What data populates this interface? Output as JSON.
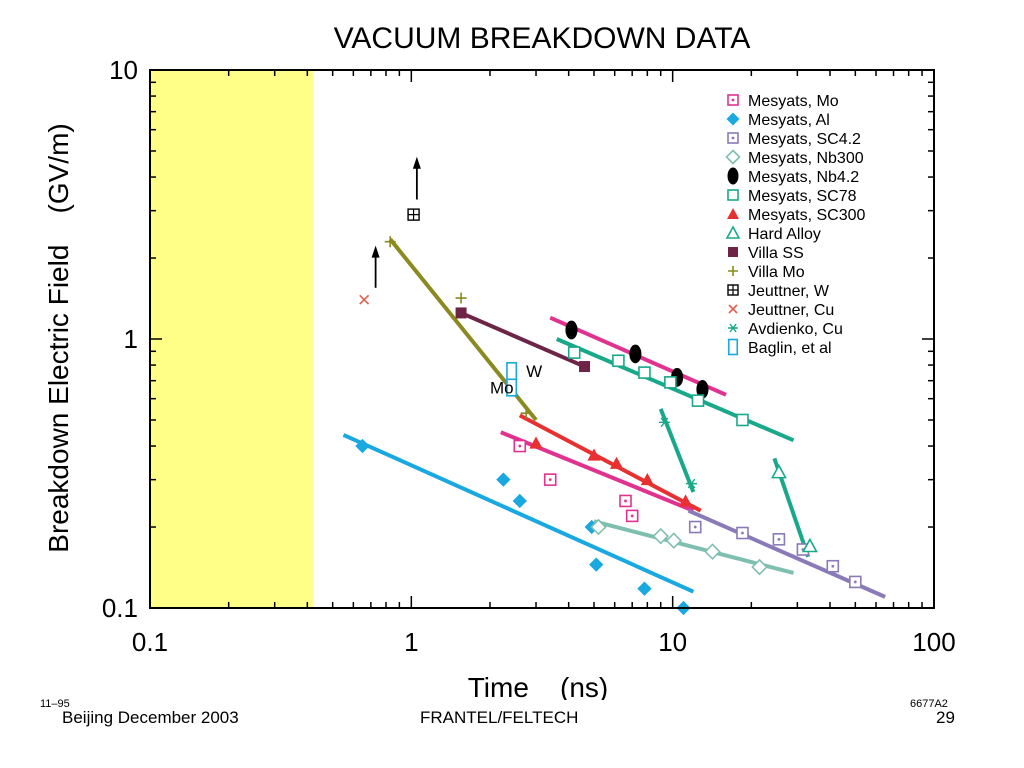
{
  "chart_data": {
    "type": "scatter",
    "title": "VACUUM BREAKDOWN DATA",
    "xlabel": "Time    (ns)",
    "ylabel": "Breakdown Electric Field    (GV/m)",
    "x_scale": "log",
    "y_scale": "log",
    "xlim": [
      0.1,
      100
    ],
    "ylim": [
      0.1,
      10
    ],
    "x_ticks": [
      {
        "value": 0.1,
        "label": "0.1"
      },
      {
        "value": 1,
        "label": "1"
      },
      {
        "value": 10,
        "label": "10"
      },
      {
        "value": 100,
        "label": "100"
      }
    ],
    "y_ticks": [
      {
        "value": 0.1,
        "label": "0.1"
      },
      {
        "value": 1,
        "label": "1"
      },
      {
        "value": 10,
        "label": "10"
      }
    ],
    "grid": false,
    "legend_position": "top-right",
    "shaded_region": {
      "x": [
        0.1,
        0.42
      ],
      "color": "#ffff88"
    },
    "series": [
      {
        "name": "Mesyats, Mo",
        "color": "#e0338f",
        "marker": "square-dot",
        "points": [
          [
            2.6,
            0.4
          ],
          [
            3.4,
            0.3
          ],
          [
            6.6,
            0.25
          ],
          [
            7.0,
            0.22
          ]
        ],
        "fit": [
          [
            2.2,
            0.45
          ],
          [
            12,
            0.23
          ]
        ]
      },
      {
        "name": "Mesyats, Al",
        "color": "#1aa8e0",
        "marker": "diamond",
        "points": [
          [
            0.65,
            0.4
          ],
          [
            2.25,
            0.3
          ],
          [
            2.6,
            0.25
          ],
          [
            4.9,
            0.2
          ],
          [
            5.1,
            0.145
          ],
          [
            7.8,
            0.118
          ],
          [
            11,
            0.1
          ]
        ],
        "fit": [
          [
            0.55,
            0.44
          ],
          [
            12,
            0.115
          ]
        ]
      },
      {
        "name": "Mesyats, SC4.2",
        "color": "#8a7bb8",
        "marker": "square-dot",
        "points": [
          [
            12.2,
            0.2
          ],
          [
            18.5,
            0.19
          ],
          [
            25.5,
            0.18
          ],
          [
            31.5,
            0.165
          ],
          [
            41,
            0.143
          ],
          [
            50,
            0.125
          ]
        ],
        "fit": [
          [
            11.5,
            0.23
          ],
          [
            65,
            0.11
          ]
        ]
      },
      {
        "name": "Mesyats, Nb300",
        "color": "#7fbfb0",
        "marker": "diamond-open",
        "points": [
          [
            5.2,
            0.2
          ],
          [
            9.0,
            0.185
          ],
          [
            10.1,
            0.178
          ],
          [
            14.2,
            0.162
          ],
          [
            21.5,
            0.142
          ]
        ],
        "fit": [
          [
            5.0,
            0.21
          ],
          [
            29,
            0.135
          ]
        ]
      },
      {
        "name": "Mesyats, Nb4.2",
        "color": "#000000",
        "marker": "ellipse",
        "points": [
          [
            4.1,
            1.08
          ],
          [
            7.2,
            0.88
          ],
          [
            10.4,
            0.72
          ],
          [
            13,
            0.65
          ]
        ],
        "fit": [
          [
            3.4,
            1.2
          ],
          [
            16,
            0.62
          ]
        ]
      },
      {
        "name": "Mesyats, SC78",
        "color": "#1aa88a",
        "marker": "square-open",
        "points": [
          [
            4.2,
            0.89
          ],
          [
            6.2,
            0.83
          ],
          [
            7.8,
            0.75
          ],
          [
            9.8,
            0.69
          ],
          [
            12.5,
            0.59
          ],
          [
            18.5,
            0.5
          ]
        ],
        "fit": [
          [
            3.6,
            1.0
          ],
          [
            29,
            0.42
          ]
        ]
      },
      {
        "name": "Mesyats, SC300",
        "color": "#e83030",
        "marker": "triangle",
        "points": [
          [
            3.0,
            0.41
          ],
          [
            5.0,
            0.37
          ],
          [
            6.1,
            0.345
          ],
          [
            8.0,
            0.3
          ],
          [
            11.2,
            0.25
          ]
        ],
        "fit": [
          [
            2.6,
            0.52
          ],
          [
            12.8,
            0.23
          ]
        ]
      },
      {
        "name": "Hard Alloy",
        "color": "#1aa88a",
        "marker": "triangle-open",
        "points": [
          [
            25.5,
            0.32
          ],
          [
            33.5,
            0.17
          ]
        ],
        "fit": [
          [
            24.5,
            0.36
          ],
          [
            33,
            0.155
          ]
        ]
      },
      {
        "name": "Villa SS",
        "color": "#6e2446",
        "marker": "square",
        "points": [
          [
            1.55,
            1.25
          ],
          [
            4.6,
            0.79
          ]
        ],
        "fit": [
          [
            1.55,
            1.25
          ],
          [
            4.6,
            0.79
          ]
        ]
      },
      {
        "name": "Villa Mo",
        "color": "#8a8a20",
        "marker": "plus",
        "points": [
          [
            0.83,
            2.3
          ],
          [
            1.55,
            1.42
          ],
          [
            2.75,
            0.53
          ]
        ],
        "fit": [
          [
            0.83,
            2.35
          ],
          [
            3.0,
            0.5
          ]
        ]
      },
      {
        "name": "Jeuttner, W",
        "color": "#000000",
        "marker": "boxed-plus",
        "points": [
          [
            1.02,
            2.9
          ]
        ],
        "fit": []
      },
      {
        "name": "Jeuttner, Cu",
        "color": "#e06050",
        "marker": "x",
        "points": [
          [
            0.66,
            1.4
          ]
        ],
        "fit": []
      },
      {
        "name": "Avdienko, Cu",
        "color": "#1aa88a",
        "marker": "asterisk",
        "points": [
          [
            9.3,
            0.49
          ],
          [
            11.8,
            0.29
          ]
        ],
        "fit": [
          [
            9.0,
            0.55
          ],
          [
            12,
            0.27
          ]
        ]
      },
      {
        "name": "Baglin, et al",
        "color": "#1aa8e0",
        "marker": "rect-open",
        "points": [
          [
            2.42,
            0.76
          ],
          [
            2.42,
            0.66
          ]
        ],
        "fit": []
      }
    ],
    "arrows_up": [
      {
        "x": 0.73,
        "y_from": 1.55,
        "y_to": 2.15
      },
      {
        "x": 1.05,
        "y_from": 3.3,
        "y_to": 4.6
      }
    ],
    "annotations": [
      {
        "text": "W",
        "x": 2.75,
        "y": 0.76
      },
      {
        "text": "Mo",
        "x": 2.0,
        "y": 0.66
      }
    ]
  },
  "footer": {
    "left_tiny": "11–95",
    "right_tiny": "6677A2",
    "left": "Beijing December 2003",
    "center": "FRANTEL/FELTECH",
    "right": "29"
  }
}
